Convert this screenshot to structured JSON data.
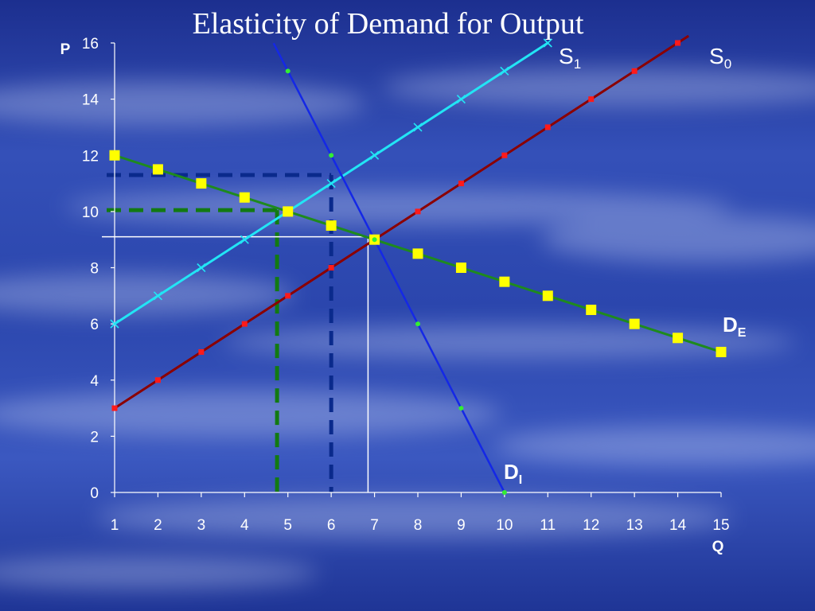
{
  "chart_data": {
    "type": "line",
    "title": "Elasticity of Demand for Output",
    "xlabel": "Q",
    "ylabel": "P",
    "xlim": [
      1,
      15
    ],
    "ylim": [
      0,
      16
    ],
    "x_ticks": [
      1,
      2,
      3,
      4,
      5,
      6,
      7,
      8,
      9,
      10,
      11,
      12,
      13,
      14,
      15
    ],
    "y_ticks": [
      0,
      2,
      4,
      6,
      8,
      10,
      12,
      14,
      16
    ],
    "grid": false,
    "series": [
      {
        "name": "S0",
        "label_main": "S",
        "label_sub": "0",
        "color": "#8b0000",
        "marker_color": "#ff1a1a",
        "marker": "square",
        "x": [
          1,
          2,
          3,
          4,
          5,
          6,
          7,
          8,
          9,
          10,
          11,
          12,
          13,
          14
        ],
        "y": [
          3,
          4,
          5,
          6,
          7,
          8,
          9,
          10,
          11,
          12,
          13,
          14,
          15,
          16
        ]
      },
      {
        "name": "S1",
        "label_main": "S",
        "label_sub": "1",
        "color": "#22e5f5",
        "marker_color": "#22e5f5",
        "marker": "x",
        "x": [
          1,
          2,
          3,
          4,
          5,
          6,
          7,
          8,
          9,
          10,
          11
        ],
        "y": [
          6,
          7,
          8,
          9,
          10,
          11,
          12,
          13,
          14,
          15,
          16
        ]
      },
      {
        "name": "DE",
        "label_main": "D",
        "label_sub": "E",
        "color": "#1e8a1e",
        "marker_color": "#ffff00",
        "marker": "big-square",
        "x": [
          1,
          2,
          3,
          4,
          5,
          6,
          7,
          8,
          9,
          10,
          11,
          12,
          13,
          14,
          15
        ],
        "y": [
          12,
          11.5,
          11,
          10.5,
          10,
          9.5,
          9,
          8.5,
          8,
          7.5,
          7,
          6.5,
          6,
          5.5,
          5
        ]
      },
      {
        "name": "DI",
        "label_main": "D",
        "label_sub": "I",
        "color": "#1428e6",
        "marker_color": "#33ee33",
        "marker": "dot",
        "x": [
          5,
          6,
          7,
          8,
          9,
          10
        ],
        "y": [
          15,
          12,
          9,
          6,
          3,
          0
        ]
      }
    ],
    "reference_lines": [
      {
        "kind": "dashed",
        "color": "#0a2a8c",
        "at": {
          "x": 6,
          "y": 11.3
        }
      },
      {
        "kind": "dashed",
        "color": "#127a12",
        "at": {
          "x": 4.75,
          "y": 10.05
        }
      },
      {
        "kind": "solid",
        "color": "#ffffff",
        "at": {
          "x": 6.85,
          "y": 9.1
        }
      }
    ]
  }
}
